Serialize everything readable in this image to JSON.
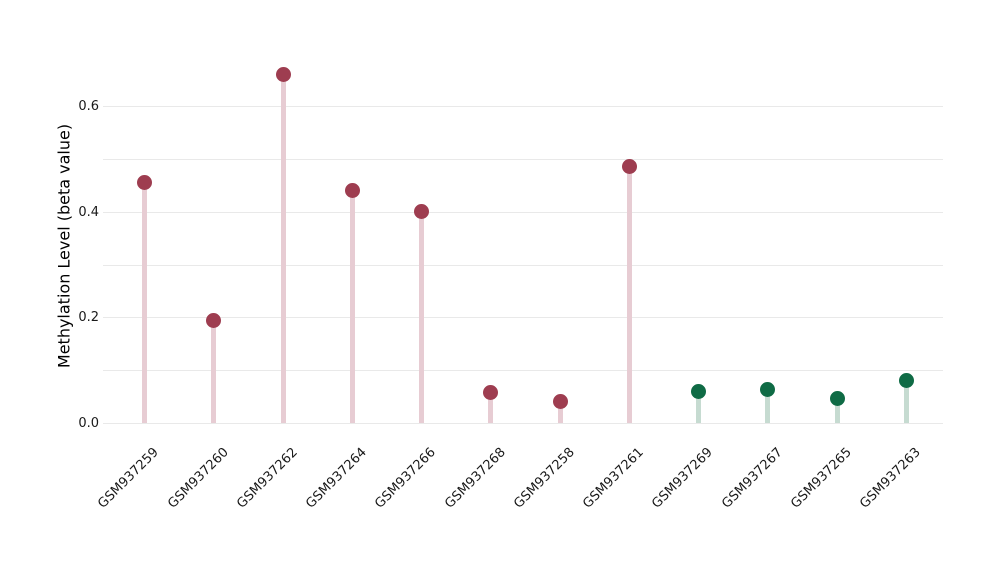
{
  "chart_data": {
    "type": "lollipop",
    "title": "",
    "ylabel": "Methylation Level (beta value)",
    "xlabel": "",
    "ylim": [
      0,
      0.69
    ],
    "grid": "horizontal-only",
    "legend": "none",
    "background": "#ffffff",
    "ytick_labels": [
      "0.0",
      "0.2",
      "0.4",
      "0.6"
    ],
    "ytick_values": [
      0,
      0.2,
      0.4,
      0.6
    ],
    "ygridline_values": [
      0,
      0.1,
      0.2,
      0.3,
      0.4,
      0.5,
      0.6
    ],
    "points": [
      {
        "label": "GSM937259",
        "value": 0.455,
        "group": "red"
      },
      {
        "label": "GSM937260",
        "value": 0.195,
        "group": "red"
      },
      {
        "label": "GSM937262",
        "value": 0.66,
        "group": "red"
      },
      {
        "label": "GSM937264",
        "value": 0.44,
        "group": "red"
      },
      {
        "label": "GSM937266",
        "value": 0.4,
        "group": "red"
      },
      {
        "label": "GSM937268",
        "value": 0.058,
        "group": "red"
      },
      {
        "label": "GSM937258",
        "value": 0.04,
        "group": "red"
      },
      {
        "label": "GSM937261",
        "value": 0.485,
        "group": "red"
      },
      {
        "label": "GSM937269",
        "value": 0.06,
        "group": "green"
      },
      {
        "label": "GSM937267",
        "value": 0.064,
        "group": "green"
      },
      {
        "label": "GSM937265",
        "value": 0.046,
        "group": "green"
      },
      {
        "label": "GSM937263",
        "value": 0.08,
        "group": "green"
      }
    ],
    "colors": {
      "red_dot": "#9e3d50",
      "red_stem": "#e7ccd3",
      "green_dot": "#0f6b45",
      "green_stem": "#c6dbd1",
      "gridline": "#e9e9e9",
      "axis_text": "#1a1a1a"
    }
  }
}
